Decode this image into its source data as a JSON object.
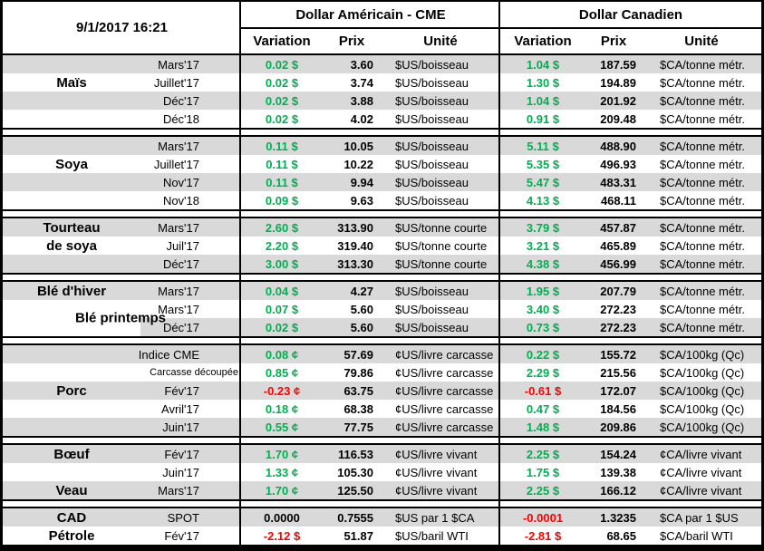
{
  "colors": {
    "positive": "#00B050",
    "negative": "#FF0000",
    "stripe": "#D9D9D9",
    "border": "#000000"
  },
  "chart_data": {
    "type": "table",
    "timestamp": "9/1/2017 16:21",
    "groups": {
      "usd": "Dollar Américain - CME",
      "cad": "Dollar Canadien"
    },
    "columns": {
      "variation": "Variation",
      "prix": "Prix",
      "unite": "Unité"
    },
    "sections": [
      {
        "id": "mais",
        "rows": [
          {
            "label": "",
            "contract": "Mars'17",
            "us": [
              "0.02 $",
              "pos",
              "3.60",
              "$US/boisseau"
            ],
            "cad": [
              "1.04 $",
              "pos",
              "187.59",
              "$CA/tonne métr."
            ]
          },
          {
            "label": "Maïs",
            "contract": "Juillet'17",
            "us": [
              "0.02 $",
              "pos",
              "3.74",
              "$US/boisseau"
            ],
            "cad": [
              "1.30 $",
              "pos",
              "194.89",
              "$CA/tonne métr."
            ]
          },
          {
            "label": "",
            "contract": "Déc'17",
            "us": [
              "0.02 $",
              "pos",
              "3.88",
              "$US/boisseau"
            ],
            "cad": [
              "1.04 $",
              "pos",
              "201.92",
              "$CA/tonne métr."
            ]
          },
          {
            "label": "",
            "contract": "Déc'18",
            "us": [
              "0.02 $",
              "pos",
              "4.02",
              "$US/boisseau"
            ],
            "cad": [
              "0.91 $",
              "pos",
              "209.48",
              "$CA/tonne métr."
            ]
          }
        ]
      },
      {
        "id": "soya",
        "rows": [
          {
            "label": "",
            "contract": "Mars'17",
            "us": [
              "0.11 $",
              "pos",
              "10.05",
              "$US/boisseau"
            ],
            "cad": [
              "5.11 $",
              "pos",
              "488.90",
              "$CA/tonne métr."
            ]
          },
          {
            "label": "Soya",
            "contract": "Juillet'17",
            "us": [
              "0.11 $",
              "pos",
              "10.22",
              "$US/boisseau"
            ],
            "cad": [
              "5.35 $",
              "pos",
              "496.93",
              "$CA/tonne métr."
            ]
          },
          {
            "label": "",
            "contract": "Nov'17",
            "us": [
              "0.11 $",
              "pos",
              "9.94",
              "$US/boisseau"
            ],
            "cad": [
              "5.47 $",
              "pos",
              "483.31",
              "$CA/tonne métr."
            ]
          },
          {
            "label": "",
            "contract": "Nov'18",
            "us": [
              "0.09 $",
              "pos",
              "9.63",
              "$US/boisseau"
            ],
            "cad": [
              "4.13 $",
              "pos",
              "468.11",
              "$CA/tonne métr."
            ]
          }
        ]
      },
      {
        "id": "tourteau-de-soya",
        "rows": [
          {
            "label": "Tourteau",
            "contract": "Mars'17",
            "us": [
              "2.60 $",
              "pos",
              "313.90",
              "$US/tonne courte"
            ],
            "cad": [
              "3.79 $",
              "pos",
              "457.87",
              "$CA/tonne métr."
            ]
          },
          {
            "label": "de soya",
            "contract": "Juil'17",
            "us": [
              "2.20 $",
              "pos",
              "319.40",
              "$US/tonne courte"
            ],
            "cad": [
              "3.21 $",
              "pos",
              "465.89",
              "$CA/tonne métr."
            ]
          },
          {
            "label": "",
            "contract": "Déc'17",
            "us": [
              "3.00 $",
              "pos",
              "313.30",
              "$US/tonne courte"
            ],
            "cad": [
              "4.38 $",
              "pos",
              "456.99",
              "$CA/tonne métr."
            ]
          }
        ]
      },
      {
        "id": "ble",
        "merged_label": {
          "text": "Blé printemps",
          "start": 1,
          "span": 2
        },
        "rows": [
          {
            "label": "Blé d'hiver",
            "contract": "Mars'17",
            "us": [
              "0.04 $",
              "pos",
              "4.27",
              "$US/boisseau"
            ],
            "cad": [
              "1.95 $",
              "pos",
              "207.79",
              "$CA/tonne métr."
            ]
          },
          {
            "label": "",
            "contract": "Mars'17",
            "us": [
              "0.07 $",
              "pos",
              "5.60",
              "$US/boisseau"
            ],
            "cad": [
              "3.40 $",
              "pos",
              "272.23",
              "$CA/tonne métr."
            ]
          },
          {
            "label": "",
            "contract": "Déc'17",
            "us": [
              "0.02 $",
              "pos",
              "5.60",
              "$US/boisseau"
            ],
            "cad": [
              "0.73 $",
              "pos",
              "272.23",
              "$CA/tonne métr."
            ]
          }
        ]
      },
      {
        "id": "porc",
        "rows": [
          {
            "label": "",
            "contract": "Indice CME",
            "us": [
              "0.08 ¢",
              "pos",
              "57.69",
              "¢US/livre carcasse"
            ],
            "cad": [
              "0.22 $",
              "pos",
              "155.72",
              "$CA/100kg (Qc)"
            ]
          },
          {
            "label": "",
            "contract": "Carcasse découpée",
            "small": true,
            "us": [
              "0.85 ¢",
              "pos",
              "79.86",
              "¢US/livre carcasse"
            ],
            "cad": [
              "2.29 $",
              "pos",
              "215.56",
              "$CA/100kg (Qc)"
            ]
          },
          {
            "label": "Porc",
            "contract": "Fév'17",
            "us": [
              "-0.23 ¢",
              "neg",
              "63.75",
              "¢US/livre carcasse"
            ],
            "cad": [
              "-0.61 $",
              "neg",
              "172.07",
              "$CA/100kg (Qc)"
            ]
          },
          {
            "label": "",
            "contract": "Avril'17",
            "us": [
              "0.18 ¢",
              "pos",
              "68.38",
              "¢US/livre carcasse"
            ],
            "cad": [
              "0.47 $",
              "pos",
              "184.56",
              "$CA/100kg (Qc)"
            ]
          },
          {
            "label": "",
            "contract": "Juin'17",
            "us": [
              "0.55 ¢",
              "pos",
              "77.75",
              "¢US/livre carcasse"
            ],
            "cad": [
              "1.48 $",
              "pos",
              "209.86",
              "$CA/100kg (Qc)"
            ]
          }
        ]
      },
      {
        "id": "boeuf-veau",
        "rows": [
          {
            "label": "Bœuf",
            "contract": "Fév'17",
            "us": [
              "1.70 ¢",
              "pos",
              "116.53",
              "¢US/livre vivant"
            ],
            "cad": [
              "2.25 $",
              "pos",
              "154.24",
              "¢CA/livre vivant"
            ]
          },
          {
            "label": "",
            "contract": "Juin'17",
            "us": [
              "1.33 ¢",
              "pos",
              "105.30",
              "¢US/livre vivant"
            ],
            "cad": [
              "1.75 $",
              "pos",
              "139.38",
              "¢CA/livre vivant"
            ]
          },
          {
            "label": "Veau",
            "contract": "Mars'17",
            "us": [
              "1.70 ¢",
              "pos",
              "125.50",
              "¢US/livre vivant"
            ],
            "cad": [
              "2.25 $",
              "pos",
              "166.12",
              "¢CA/livre vivant"
            ]
          }
        ]
      },
      {
        "id": "cad-petrole",
        "rows": [
          {
            "label": "CAD",
            "contract": "SPOT",
            "us": [
              "0.0000",
              "plain",
              "0.7555",
              "$US par 1 $CA"
            ],
            "cad": [
              "-0.0001",
              "neg",
              "1.3235",
              "$CA par 1 $US"
            ]
          },
          {
            "label": "Pétrole",
            "contract": "Fév'17",
            "us": [
              "-2.12 $",
              "neg",
              "51.87",
              "$US/baril WTI"
            ],
            "cad": [
              "-2.81 $",
              "neg",
              "68.65",
              "$CA/baril WTI"
            ]
          }
        ]
      }
    ]
  }
}
